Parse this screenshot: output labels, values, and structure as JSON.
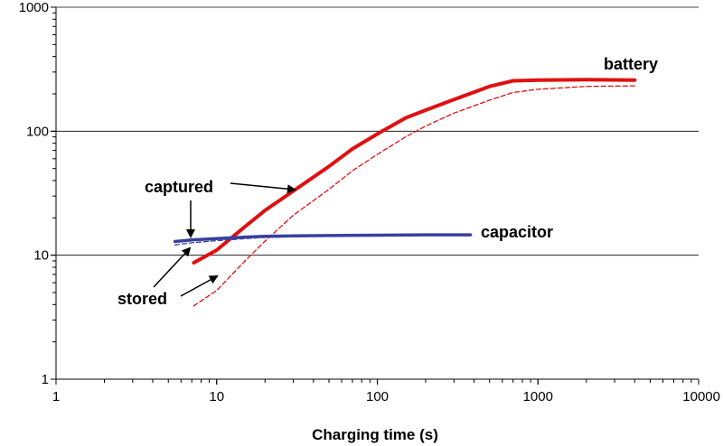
{
  "chart_data": {
    "type": "line",
    "title": "",
    "xlabel": "Charging time (s)",
    "ylabel": "",
    "x_scale": "log",
    "y_scale": "log",
    "xlim": [
      1,
      10000
    ],
    "ylim": [
      1,
      1000
    ],
    "x_ticks": [
      {
        "value": 1,
        "label": "1"
      },
      {
        "value": 10,
        "label": "10"
      },
      {
        "value": 100,
        "label": "100"
      },
      {
        "value": 1000,
        "label": "1000"
      },
      {
        "value": 10000,
        "label": "10000"
      }
    ],
    "y_ticks": [
      {
        "value": 1,
        "label": "1"
      },
      {
        "value": 10,
        "label": "10"
      },
      {
        "value": 100,
        "label": "100"
      },
      {
        "value": 1000,
        "label": "1000"
      }
    ],
    "grid": "horizontal major",
    "series": [
      {
        "name": "battery",
        "variant": "captured",
        "color": "#e01010",
        "style": "solid",
        "points": [
          [
            7.2,
            8.7
          ],
          [
            10,
            11
          ],
          [
            15,
            17
          ],
          [
            20,
            23
          ],
          [
            30,
            33
          ],
          [
            50,
            52
          ],
          [
            70,
            72
          ],
          [
            100,
            95
          ],
          [
            150,
            128
          ],
          [
            200,
            148
          ],
          [
            300,
            180
          ],
          [
            500,
            230
          ],
          [
            700,
            255
          ],
          [
            1000,
            258
          ],
          [
            2000,
            260
          ],
          [
            4000,
            258
          ]
        ]
      },
      {
        "name": "battery",
        "variant": "stored",
        "color": "#e01010",
        "style": "dashed",
        "points": [
          [
            7.2,
            3.9
          ],
          [
            10,
            5.2
          ],
          [
            15,
            9
          ],
          [
            20,
            13
          ],
          [
            30,
            21
          ],
          [
            50,
            34
          ],
          [
            70,
            48
          ],
          [
            100,
            65
          ],
          [
            150,
            90
          ],
          [
            200,
            110
          ],
          [
            300,
            140
          ],
          [
            500,
            178
          ],
          [
            700,
            205
          ],
          [
            1000,
            218
          ],
          [
            2000,
            230
          ],
          [
            4000,
            232
          ]
        ]
      },
      {
        "name": "capacitor",
        "variant": "captured",
        "color": "#3a3fa0",
        "style": "solid",
        "points": [
          [
            5.5,
            12.9
          ],
          [
            7,
            13.3
          ],
          [
            10,
            13.6
          ],
          [
            15,
            14
          ],
          [
            20,
            14.2
          ],
          [
            30,
            14.3
          ],
          [
            50,
            14.4
          ],
          [
            100,
            14.5
          ],
          [
            200,
            14.6
          ],
          [
            380,
            14.6
          ]
        ]
      },
      {
        "name": "capacitor",
        "variant": "stored",
        "color": "#3a3fa0",
        "style": "dashed",
        "points": [
          [
            5.5,
            12.1
          ],
          [
            7,
            12.6
          ],
          [
            10,
            13.1
          ],
          [
            15,
            13.6
          ],
          [
            20,
            13.9
          ],
          [
            30,
            14.1
          ],
          [
            50,
            14.3
          ],
          [
            100,
            14.4
          ],
          [
            200,
            14.5
          ],
          [
            380,
            14.6
          ]
        ]
      }
    ],
    "annotations": {
      "battery_label": "battery",
      "capacitor_label": "capacitor",
      "captured_label": "captured",
      "stored_label": "stored"
    }
  }
}
